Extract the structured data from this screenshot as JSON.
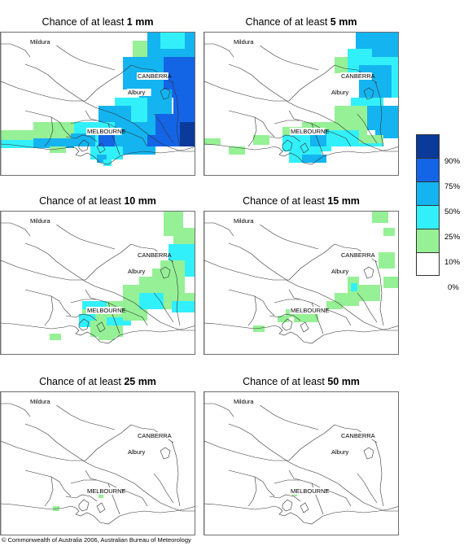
{
  "panels": [
    {
      "prefix": "Chance of at least ",
      "amount": "1 mm"
    },
    {
      "prefix": "Chance of at least ",
      "amount": "5 mm"
    },
    {
      "prefix": "Chance of at least ",
      "amount": "10 mm"
    },
    {
      "prefix": "Chance of at least ",
      "amount": "15 mm"
    },
    {
      "prefix": "Chance of at least ",
      "amount": "25 mm"
    },
    {
      "prefix": "Chance of at least ",
      "amount": "50 mm"
    }
  ],
  "places": {
    "mildura": "Mildura",
    "canberra": "CANBERRA",
    "albury": "Albury",
    "melbourne": "MELBOURNE"
  },
  "legend": {
    "labels": [
      "90%",
      "75%",
      "50%",
      "25%",
      "10%",
      "0%"
    ],
    "colors": [
      "#0a3a9a",
      "#1464e6",
      "#14b4f0",
      "#32f0fa",
      "#96f096",
      "#ffffff"
    ]
  },
  "copyright": "© Commonwealth of Australia 2006, Australian Bureau of Meteorology"
}
